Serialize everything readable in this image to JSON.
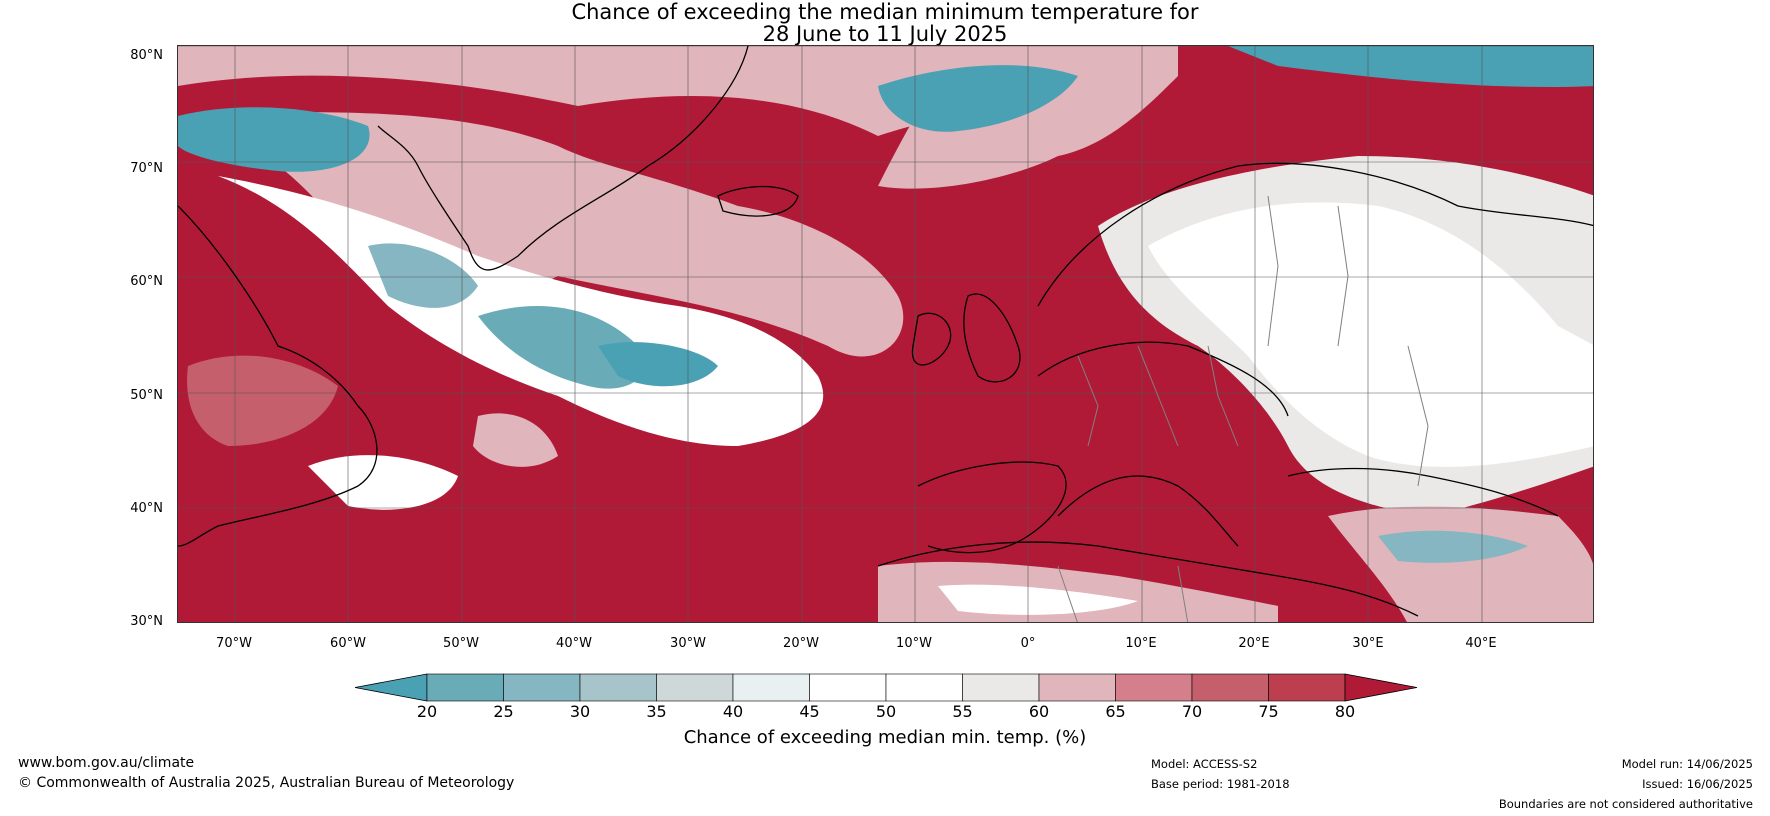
{
  "title_line1": "Chance of exceeding the median minimum temperature for",
  "title_line2": "28 June to 11 July 2025",
  "map": {
    "lat_labels": [
      "80°N",
      "70°N",
      "60°N",
      "50°N",
      "40°N",
      "30°N"
    ],
    "lon_labels": [
      "70°W",
      "60°W",
      "50°W",
      "40°W",
      "30°W",
      "20°W",
      "10°W",
      "0°",
      "10°E",
      "20°E",
      "30°E",
      "40°E"
    ],
    "dominant_color": "#b01a37",
    "cool_color": "#4aa1b3",
    "land_outline_color": "#000000",
    "border_color": "#808080"
  },
  "colorbar": {
    "label": "Chance of exceeding median min. temp. (%)",
    "ticks": [
      "20",
      "25",
      "30",
      "35",
      "40",
      "45",
      "50",
      "55",
      "60",
      "65",
      "70",
      "75",
      "80"
    ],
    "colors": [
      "#4aa1b3",
      "#6aabb8",
      "#86b6c2",
      "#a6c4c9",
      "#cfd8d9",
      "#e8f0f2",
      "#ffffff",
      "#ffffff",
      "#ebe8e8",
      "#e0b5bb",
      "#d47f8b",
      "#c65f6c",
      "#bd3f4f",
      "#b01a37"
    ]
  },
  "footer": {
    "website": "www.bom.gov.au/climate",
    "copyright": "© Commonwealth of Australia 2025, Australian Bureau of Meteorology",
    "model": "Model: ACCESS-S2",
    "base_period": "Base period: 1981-2018",
    "model_run": "Model run: 14/06/2025",
    "issued": "Issued: 16/06/2025",
    "disclaimer": "Boundaries are not considered authoritative"
  }
}
